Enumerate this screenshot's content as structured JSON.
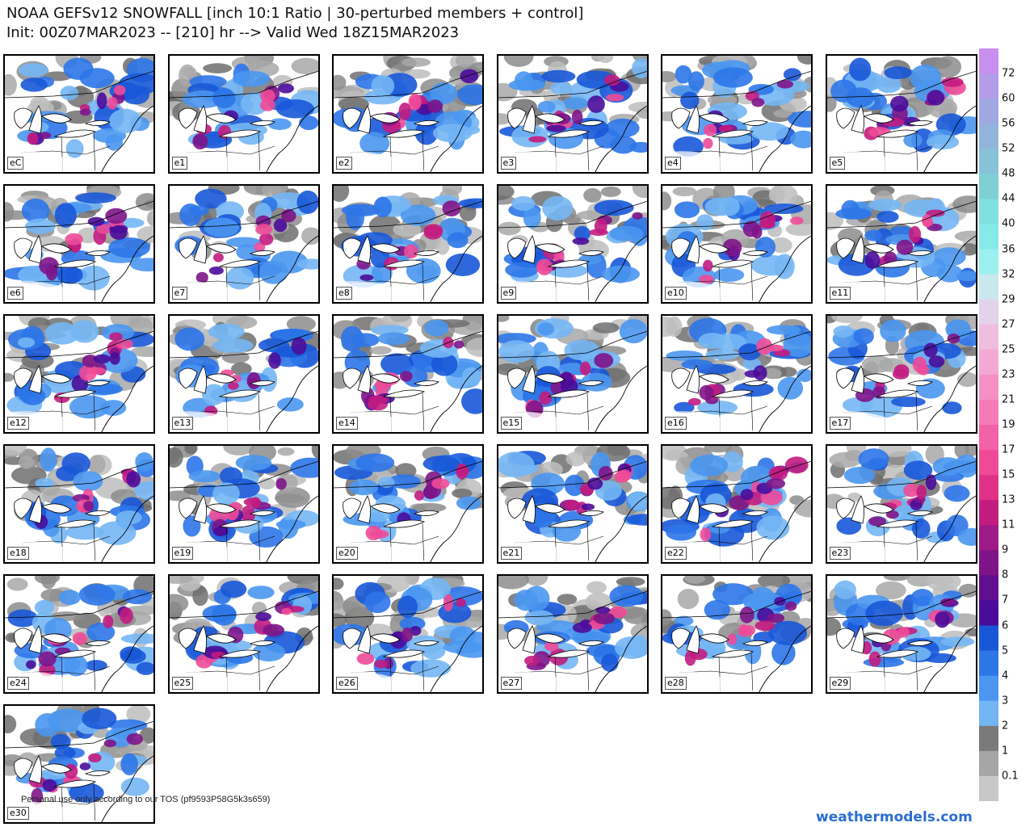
{
  "header": {
    "line1": "NOAA GEFSv12 SNOWFALL [inch 10:1 Ratio | 30-perturbed members + control]",
    "line2": "Init: 00Z07MAR2023 -- [210] hr --> Valid Wed 18Z15MAR2023"
  },
  "panels": [
    {
      "label": "eC",
      "intensity": 0.45
    },
    {
      "label": "e1",
      "intensity": 0.4
    },
    {
      "label": "e2",
      "intensity": 0.6
    },
    {
      "label": "e3",
      "intensity": 0.75
    },
    {
      "label": "e4",
      "intensity": 0.5
    },
    {
      "label": "e5",
      "intensity": 0.8
    },
    {
      "label": "e6",
      "intensity": 0.8
    },
    {
      "label": "e7",
      "intensity": 0.45
    },
    {
      "label": "e8",
      "intensity": 0.6
    },
    {
      "label": "e9",
      "intensity": 0.7
    },
    {
      "label": "e10",
      "intensity": 0.6
    },
    {
      "label": "e11",
      "intensity": 0.6
    },
    {
      "label": "e12",
      "intensity": 0.8
    },
    {
      "label": "e13",
      "intensity": 0.35
    },
    {
      "label": "e14",
      "intensity": 0.65
    },
    {
      "label": "e15",
      "intensity": 0.6
    },
    {
      "label": "e16",
      "intensity": 0.55
    },
    {
      "label": "e17",
      "intensity": 0.6
    },
    {
      "label": "e18",
      "intensity": 0.5
    },
    {
      "label": "e19",
      "intensity": 0.7
    },
    {
      "label": "e20",
      "intensity": 0.65
    },
    {
      "label": "e21",
      "intensity": 0.75
    },
    {
      "label": "e22",
      "intensity": 0.85
    },
    {
      "label": "e23",
      "intensity": 0.55
    },
    {
      "label": "e24",
      "intensity": 0.6
    },
    {
      "label": "e25",
      "intensity": 0.9
    },
    {
      "label": "e26",
      "intensity": 0.5
    },
    {
      "label": "e27",
      "intensity": 0.75
    },
    {
      "label": "e28",
      "intensity": 0.65
    },
    {
      "label": "e29",
      "intensity": 0.8
    },
    {
      "label": "e30",
      "intensity": 0.55
    }
  ],
  "colorbar": {
    "labels": [
      "72",
      "60",
      "56",
      "52",
      "48",
      "44",
      "40",
      "36",
      "32",
      "29",
      "27",
      "25",
      "23",
      "21",
      "19",
      "17",
      "15",
      "13",
      "11",
      "9",
      "8",
      "7",
      "6",
      "5",
      "4",
      "3",
      "2",
      "1",
      "0.1"
    ],
    "colors": [
      "#c88ef0",
      "#b39ce8",
      "#a0a8e2",
      "#92b4dc",
      "#88c2d8",
      "#7ed0d4",
      "#80e0e0",
      "#86eaea",
      "#9cf0f0",
      "#c8e8ee",
      "#e2d2ec",
      "#f0bce0",
      "#f4a8d4",
      "#f490c6",
      "#f47ab8",
      "#f262a8",
      "#ee4a98",
      "#e03088",
      "#c21c80",
      "#9e1a86",
      "#7e1488",
      "#620e90",
      "#4a0c9a",
      "#1858d8",
      "#2c76e8",
      "#4a96f0",
      "#74b6f4",
      "#7a7a7a",
      "#a6a6a6",
      "#c8c8c8"
    ]
  },
  "footer": {
    "tos": "Personal use only according to our TOS (pf9593P58G5k3s659)",
    "brand": "weathermodels.com"
  }
}
